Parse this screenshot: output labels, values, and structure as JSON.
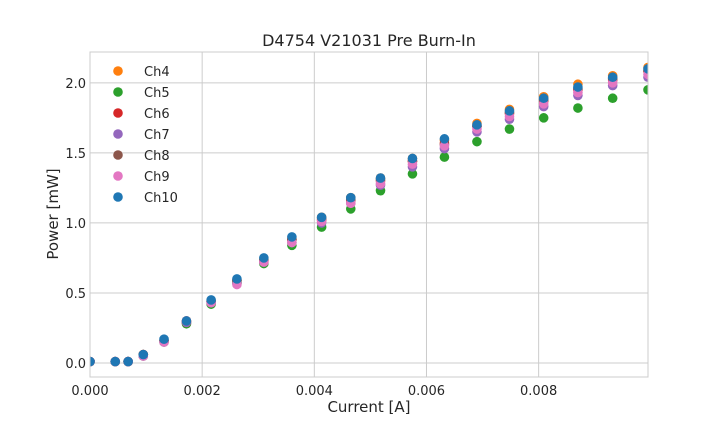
{
  "chart_data": {
    "type": "scatter",
    "title": "D4754 V21031 Pre Burn-In",
    "xlabel": "Current [A]",
    "ylabel": "Power [mW]",
    "xlim": [
      0,
      0.00995
    ],
    "ylim": [
      -0.1,
      2.22
    ],
    "xticks": [
      0,
      0.002,
      0.004,
      0.006,
      0.008
    ],
    "xtick_labels": [
      "0.000",
      "0.002",
      "0.004",
      "0.006",
      "0.008"
    ],
    "yticks": [
      0,
      0.5,
      1.0,
      1.5,
      2.0
    ],
    "ytick_labels": [
      "0.0",
      "0.5",
      "1.0",
      "1.5",
      "2.0"
    ],
    "grid": true,
    "legend": "top-left",
    "x": [
      0,
      0.00045,
      0.00068,
      0.00095,
      0.00132,
      0.00172,
      0.00216,
      0.00262,
      0.0031,
      0.0036,
      0.00413,
      0.00465,
      0.00518,
      0.00575,
      0.00632,
      0.0069,
      0.00748,
      0.00809,
      0.0087,
      0.00932,
      0.00995
    ],
    "series": [
      {
        "name": "Ch4",
        "color": "#ff7f0e",
        "values": [
          0.01,
          0.01,
          0.01,
          0.06,
          0.16,
          0.3,
          0.44,
          0.59,
          0.74,
          0.89,
          1.04,
          1.18,
          1.32,
          1.46,
          1.59,
          1.71,
          1.81,
          1.9,
          1.99,
          2.05,
          2.11
        ]
      },
      {
        "name": "Ch5",
        "color": "#2ca02c",
        "values": [
          0.01,
          0.01,
          0.01,
          0.05,
          0.15,
          0.28,
          0.42,
          0.57,
          0.71,
          0.84,
          0.97,
          1.1,
          1.23,
          1.35,
          1.47,
          1.58,
          1.67,
          1.75,
          1.82,
          1.89,
          1.95
        ]
      },
      {
        "name": "Ch6",
        "color": "#d62728",
        "values": [
          0.01,
          0.01,
          0.01,
          0.06,
          0.16,
          0.29,
          0.44,
          0.59,
          0.73,
          0.88,
          1.02,
          1.16,
          1.3,
          1.44,
          1.57,
          1.69,
          1.78,
          1.87,
          1.95,
          2.02,
          2.08
        ]
      },
      {
        "name": "Ch7",
        "color": "#9467bd",
        "values": [
          0.01,
          0.01,
          0.01,
          0.05,
          0.15,
          0.29,
          0.43,
          0.57,
          0.72,
          0.86,
          1.0,
          1.14,
          1.27,
          1.4,
          1.53,
          1.65,
          1.74,
          1.83,
          1.91,
          1.98,
          2.04
        ]
      },
      {
        "name": "Ch8",
        "color": "#8c564b",
        "values": [
          0.01,
          0.01,
          0.01,
          0.06,
          0.16,
          0.3,
          0.44,
          0.59,
          0.73,
          0.88,
          1.03,
          1.17,
          1.31,
          1.44,
          1.56,
          1.69,
          1.79,
          1.88,
          1.96,
          2.03,
          2.09
        ]
      },
      {
        "name": "Ch9",
        "color": "#e377c2",
        "values": [
          0.01,
          0.01,
          0.01,
          0.05,
          0.15,
          0.3,
          0.43,
          0.56,
          0.72,
          0.86,
          1.01,
          1.14,
          1.28,
          1.42,
          1.55,
          1.67,
          1.76,
          1.85,
          1.93,
          2.0,
          2.06
        ]
      },
      {
        "name": "Ch10",
        "color": "#1f77b4",
        "values": [
          0.01,
          0.01,
          0.01,
          0.06,
          0.17,
          0.3,
          0.45,
          0.6,
          0.75,
          0.9,
          1.04,
          1.18,
          1.32,
          1.46,
          1.6,
          1.7,
          1.8,
          1.89,
          1.97,
          2.04,
          2.1
        ]
      }
    ]
  }
}
